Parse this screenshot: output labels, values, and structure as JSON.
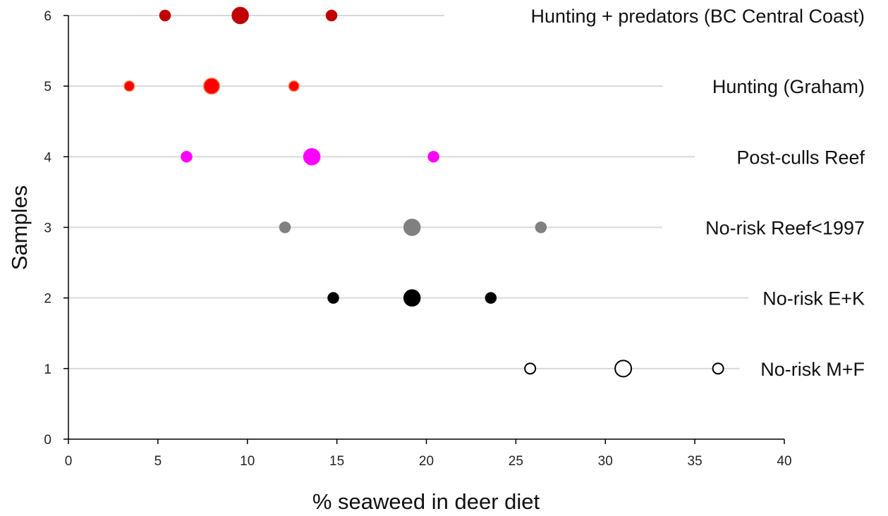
{
  "chart_data": {
    "type": "scatter",
    "title": "",
    "xlabel": "% seaweed in deer diet",
    "ylabel": "Samples",
    "xlim": [
      0,
      40
    ],
    "ylim": [
      0,
      6
    ],
    "xticks": [
      "0",
      "5",
      "10",
      "15",
      "20",
      "25",
      "30",
      "35",
      "40"
    ],
    "yticks": [
      "0",
      "1",
      "2",
      "3",
      "4",
      "5",
      "6"
    ],
    "grid": "horizontal reference lines per series",
    "series": [
      {
        "name": "No-risk M+F",
        "y": 1,
        "line_from": 0,
        "line_to": 37.5,
        "low": 25.8,
        "mean": 31.0,
        "high": 36.3,
        "color": "#ffffff",
        "stroke": "#000000"
      },
      {
        "name": "No-risk E+K",
        "y": 2,
        "line_from": 0,
        "line_to": 38.0,
        "low": 14.8,
        "mean": 19.2,
        "high": 23.6,
        "color": "#000000",
        "stroke": "#000000"
      },
      {
        "name": "No-risk Reef<1997",
        "y": 3,
        "line_from": 0,
        "line_to": 33.2,
        "low": 12.1,
        "mean": 19.2,
        "high": 26.4,
        "color": "#808080",
        "stroke": "#808080"
      },
      {
        "name": "Post-culls Reef",
        "y": 4,
        "line_from": 0,
        "line_to": 35.0,
        "low": 6.6,
        "mean": 13.6,
        "high": 20.4,
        "color": "#ff00ff",
        "stroke": "#ff00ff"
      },
      {
        "name": "Hunting (Graham)",
        "y": 5,
        "line_from": 0,
        "line_to": 33.2,
        "low": 3.4,
        "mean": 8.0,
        "high": 12.6,
        "color": "#ff0000",
        "stroke": "#f4a070"
      },
      {
        "name": "Hunting + predators (BC Central Coast)",
        "y": 6,
        "line_from": 0,
        "line_to": 21.0,
        "low": 5.4,
        "mean": 9.6,
        "high": 14.7,
        "color": "#c00000",
        "stroke": "#c00000"
      }
    ]
  }
}
